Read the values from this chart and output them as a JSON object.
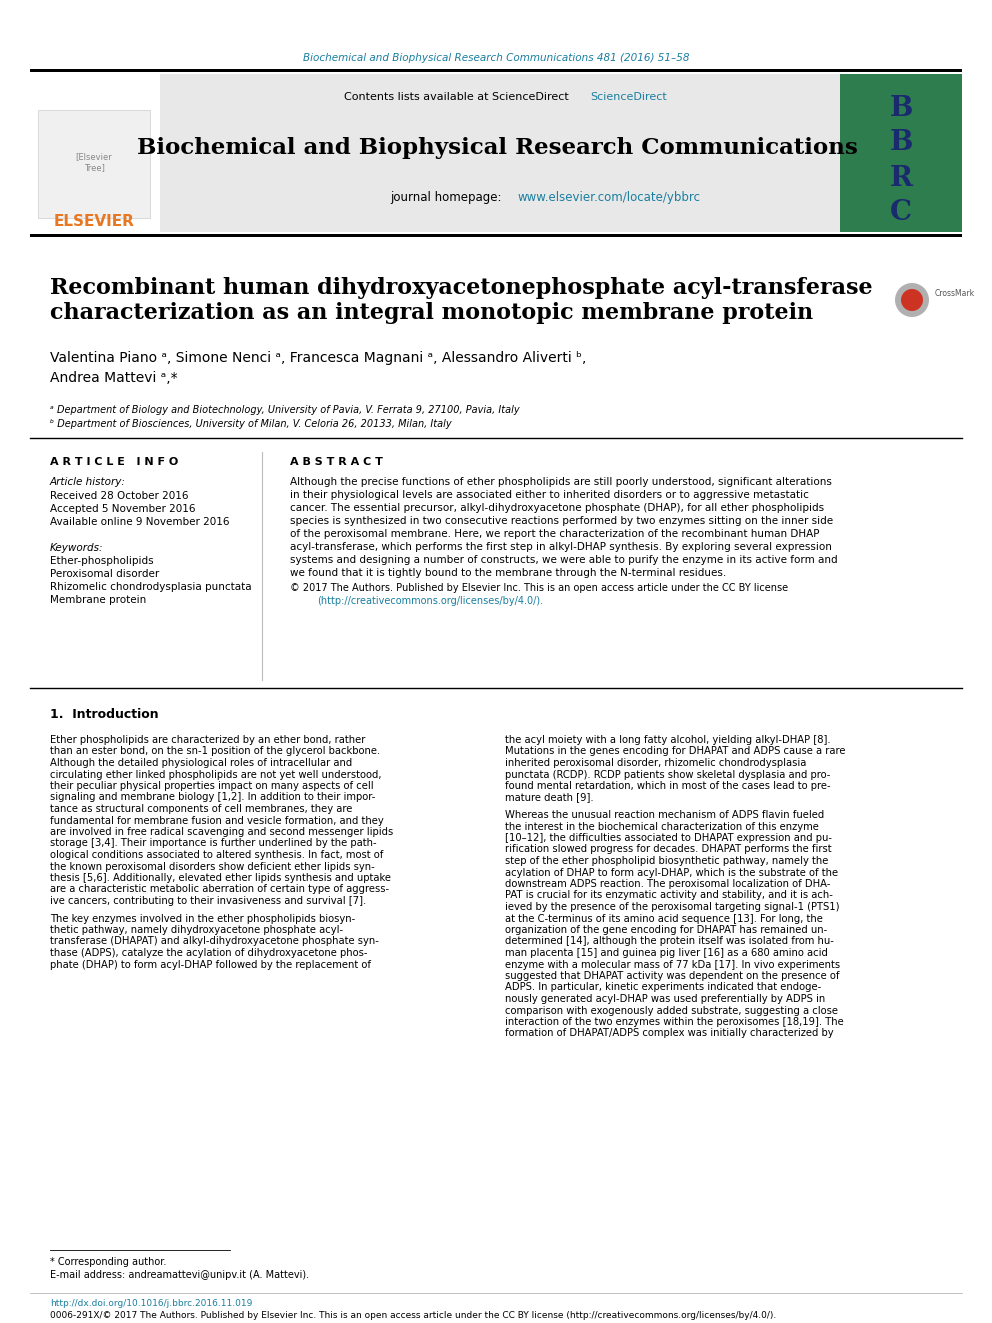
{
  "bg_color": "#ffffff",
  "top_journal_line": "Biochemical and Biophysical Research Communications 481 (2016) 51–58",
  "top_journal_color": "#1a7fa0",
  "journal_title": "Biochemical and Biophysical Research Communications",
  "journal_homepage": "journal homepage: www.elsevier.com/locate/ybbrc",
  "contents_line": "Contents lists available at ScienceDirect",
  "elsevier_color": "#e87722",
  "paper_title_line1": "Recombinant human dihydroxyacetonephosphate acyl-transferase",
  "paper_title_line2": "characterization as an integral monotopic membrane protein",
  "authors": "Valentina Piano ᵃ, Simone Nenci ᵃ, Francesca Magnani ᵃ, Alessandro Aliverti ᵇ,",
  "authors2": "Andrea Mattevi ᵃ,*",
  "affil_a": "ᵃ Department of Biology and Biotechnology, University of Pavia, V. Ferrata 9, 27100, Pavia, Italy",
  "affil_b": "ᵇ Department of Biosciences, University of Milan, V. Celoria 26, 20133, Milan, Italy",
  "article_info_header": "A R T I C L E   I N F O",
  "article_history_label": "Article history:",
  "received": "Received 28 October 2016",
  "accepted": "Accepted 5 November 2016",
  "available": "Available online 9 November 2016",
  "keywords_label": "Keywords:",
  "keyword1": "Ether-phospholipids",
  "keyword2": "Peroxisomal disorder",
  "keyword3": "Rhizomelic chondrodysplasia punctata",
  "keyword4": "Membrane protein",
  "abstract_header": "A B S T R A C T",
  "abstract_text": "Although the precise functions of ether phospholipids are still poorly understood, significant alterations\nin their physiological levels are associated either to inherited disorders or to aggressive metastatic\ncancer. The essential precursor, alkyl-dihydroxyacetone phosphate (DHAP), for all ether phospholipids\nspecies is synthesized in two consecutive reactions performed by two enzymes sitting on the inner side\nof the peroxisomal membrane. Here, we report the characterization of the recombinant human DHAP\nacyl-transferase, which performs the first step in alkyl-DHAP synthesis. By exploring several expression\nsystems and designing a number of constructs, we were able to purify the enzyme in its active form and\nwe found that it is tightly bound to the membrane through the N-terminal residues.",
  "copyright_line": "© 2017 The Authors. Published by Elsevier Inc. This is an open access article under the CC BY license",
  "copyright_url": "(http://creativecommons.org/licenses/by/4.0/).",
  "intro_header": "1.  Introduction",
  "intro_col1": "Ether phospholipids are characterized by an ether bond, rather\nthan an ester bond, on the sn-1 position of the glycerol backbone.\nAlthough the detailed physiological roles of intracellular and\ncirculating ether linked phospholipids are not yet well understood,\ntheir peculiar physical properties impact on many aspects of cell\nsignaling and membrane biology [1,2]. In addition to their impor-\ntance as structural components of cell membranes, they are\nfundamental for membrane fusion and vesicle formation, and they\nare involved in free radical scavenging and second messenger lipids\nstorage [3,4]. Their importance is further underlined by the path-\nological conditions associated to altered synthesis. In fact, most of\nthe known peroxisomal disorders show deficient ether lipids syn-\nthesis [5,6]. Additionally, elevated ether lipids synthesis and uptake\nare a characteristic metabolic aberration of certain type of aggress-\nive cancers, contributing to their invasiveness and survival [7].\n\nThe key enzymes involved in the ether phospholipids biosyn-\nthetic pathway, namely dihydroxyacetone phosphate acyl-\ntransferase (DHAPAT) and alkyl-dihydroxyacetone phosphate syn-\nthase (ADPS), catalyze the acylation of dihydroxyacetone phos-\nphate (DHAP) to form acyl-DHAP followed by the replacement of",
  "intro_col2": "the acyl moiety with a long fatty alcohol, yielding alkyl-DHAP [8].\nMutations in the genes encoding for DHAPAT and ADPS cause a rare\ninherited peroxisomal disorder, rhizomelic chondrodysplasia\npunctata (RCDP). RCDP patients show skeletal dysplasia and pro-\nfound mental retardation, which in most of the cases lead to pre-\nmature death [9].\n\nWhereas the unusual reaction mechanism of ADPS flavin fueled\nthe interest in the biochemical characterization of this enzyme\n[10–12], the difficulties associated to DHAPAT expression and pu-\nrification slowed progress for decades. DHAPAT performs the first\nstep of the ether phospholipid biosynthetic pathway, namely the\nacylation of DHAP to form acyl-DHAP, which is the substrate of the\ndownstream ADPS reaction. The peroxisomal localization of DHA-\nPAT is crucial for its enzymatic activity and stability, and it is ach-\nieved by the presence of the peroxisomal targeting signal-1 (PTS1)\nat the C-terminus of its amino acid sequence [13]. For long, the\norganization of the gene encoding for DHAPAT has remained un-\ndetermined [14], although the protein itself was isolated from hu-\nman placenta [15] and guinea pig liver [16] as a 680 amino acid\nenzyme with a molecular mass of 77 kDa [17]. In vivo experiments\nsuggested that DHAPAT activity was dependent on the presence of\nADPS. In particular, kinetic experiments indicated that endoge-\nnously generated acyl-DHAP was used preferentially by ADPS in\ncomparison with exogenously added substrate, suggesting a close\ninteraction of the two enzymes within the peroxisomes [18,19]. The\nformation of DHAPAT/ADPS complex was initially characterized by",
  "footnote1": "* Corresponding author.",
  "footnote2": "E-mail address: andreamattevi@unipv.it (A. Mattevi).",
  "footer_doi": "http://dx.doi.org/10.1016/j.bbrc.2016.11.019",
  "footer_rights": "0006-291X/© 2017 The Authors. Published by Elsevier Inc. This is an open access article under the CC BY license (http://creativecommons.org/licenses/by/4.0/).",
  "link_color": "#1a7fa0",
  "header_bg": "#e8e8e8",
  "bbrc_bg": "#2e7d4f"
}
